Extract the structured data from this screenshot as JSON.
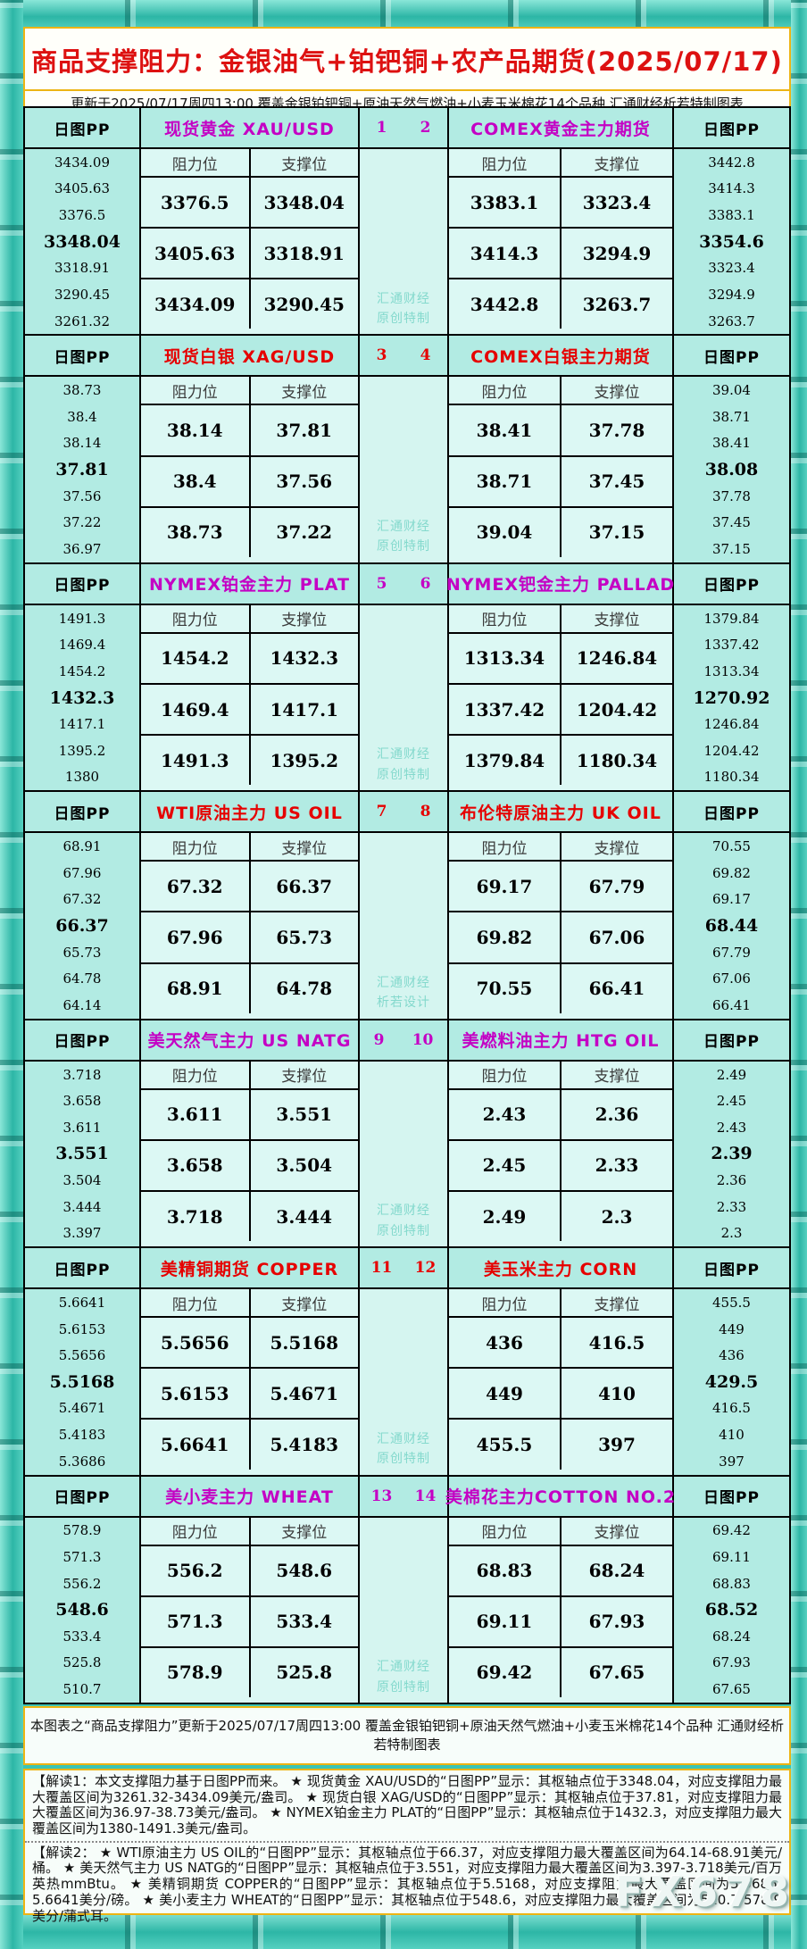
{
  "title": "商品支撑阻力：金银油气+铂钯铜+农产品期货(2025/07/17)",
  "subtitle": "更新于2025/07/17周四13:00  覆盖金银铂钯铜+原油天然气燃油+小麦玉米棉花14个品种  汇通财经析若特制图表",
  "labels": {
    "pp": "日图PP",
    "resistance": "阻力位",
    "support": "支撑位",
    "watermark_line1": "汇通财经"
  },
  "colors": {
    "magenta_accent": "#c400c4",
    "red_accent": "#e60000",
    "title_red": "#dd1111",
    "gold_border": "#edb413",
    "watermark_teal": "#84d9cd"
  },
  "chart_data": {
    "type": "table",
    "title": "商品支撑阻力：金银油气+铂钯铜+农产品期货(2025/07/17)",
    "columns": [
      "阻力位",
      "支撑位"
    ],
    "pivot_note": "日图PP，第4行为枢轴点(加粗)",
    "blocks": "see blocks[] for all 14 instruments"
  },
  "blocks": [
    {
      "accent": "#c400c4",
      "num_left": "1",
      "num_right": "2",
      "watermark_line2": "原创特制",
      "left": {
        "title": "现货黄金 XAU/USD",
        "pp_values": [
          "3434.09",
          "3405.63",
          "3376.5",
          "3348.04",
          "3318.91",
          "3290.45",
          "3261.32"
        ],
        "rows": [
          [
            "3376.5",
            "3348.04"
          ],
          [
            "3405.63",
            "3318.91"
          ],
          [
            "3434.09",
            "3290.45"
          ]
        ]
      },
      "right": {
        "title": "COMEX黄金主力期货",
        "pp_values": [
          "3442.8",
          "3414.3",
          "3383.1",
          "3354.6",
          "3323.4",
          "3294.9",
          "3263.7"
        ],
        "rows": [
          [
            "3383.1",
            "3323.4"
          ],
          [
            "3414.3",
            "3294.9"
          ],
          [
            "3442.8",
            "3263.7"
          ]
        ]
      }
    },
    {
      "accent": "#e60000",
      "num_left": "3",
      "num_right": "4",
      "watermark_line2": "原创特制",
      "left": {
        "title": "现货白银 XAG/USD",
        "pp_values": [
          "38.73",
          "38.4",
          "38.14",
          "37.81",
          "37.56",
          "37.22",
          "36.97"
        ],
        "rows": [
          [
            "38.14",
            "37.81"
          ],
          [
            "38.4",
            "37.56"
          ],
          [
            "38.73",
            "37.22"
          ]
        ]
      },
      "right": {
        "title": "COMEX白银主力期货",
        "pp_values": [
          "39.04",
          "38.71",
          "38.41",
          "38.08",
          "37.78",
          "37.45",
          "37.15"
        ],
        "rows": [
          [
            "38.41",
            "37.78"
          ],
          [
            "38.71",
            "37.45"
          ],
          [
            "39.04",
            "37.15"
          ]
        ]
      }
    },
    {
      "accent": "#c400c4",
      "num_left": "5",
      "num_right": "6",
      "watermark_line2": "原创特制",
      "left": {
        "title": "NYMEX铂金主力 PLAT",
        "pp_values": [
          "1491.3",
          "1469.4",
          "1454.2",
          "1432.3",
          "1417.1",
          "1395.2",
          "1380"
        ],
        "rows": [
          [
            "1454.2",
            "1432.3"
          ],
          [
            "1469.4",
            "1417.1"
          ],
          [
            "1491.3",
            "1395.2"
          ]
        ]
      },
      "right": {
        "title": "NYMEX钯金主力 PALLAD",
        "pp_values": [
          "1379.84",
          "1337.42",
          "1313.34",
          "1270.92",
          "1246.84",
          "1204.42",
          "1180.34"
        ],
        "rows": [
          [
            "1313.34",
            "1246.84"
          ],
          [
            "1337.42",
            "1204.42"
          ],
          [
            "1379.84",
            "1180.34"
          ]
        ]
      }
    },
    {
      "accent": "#e60000",
      "num_left": "7",
      "num_right": "8",
      "watermark_line2": "析若设计",
      "left": {
        "title": "WTI原油主力 US OIL",
        "pp_values": [
          "68.91",
          "67.96",
          "67.32",
          "66.37",
          "65.73",
          "64.78",
          "64.14"
        ],
        "rows": [
          [
            "67.32",
            "66.37"
          ],
          [
            "67.96",
            "65.73"
          ],
          [
            "68.91",
            "64.78"
          ]
        ]
      },
      "right": {
        "title": "布伦特原油主力 UK OIL",
        "pp_values": [
          "70.55",
          "69.82",
          "69.17",
          "68.44",
          "67.79",
          "67.06",
          "66.41"
        ],
        "rows": [
          [
            "69.17",
            "67.79"
          ],
          [
            "69.82",
            "67.06"
          ],
          [
            "70.55",
            "66.41"
          ]
        ]
      }
    },
    {
      "accent": "#c400c4",
      "num_left": "9",
      "num_right": "10",
      "watermark_line2": "原创特制",
      "left": {
        "title": "美天然气主力 US NATG",
        "pp_values": [
          "3.718",
          "3.658",
          "3.611",
          "3.551",
          "3.504",
          "3.444",
          "3.397"
        ],
        "rows": [
          [
            "3.611",
            "3.551"
          ],
          [
            "3.658",
            "3.504"
          ],
          [
            "3.718",
            "3.444"
          ]
        ]
      },
      "right": {
        "title": "美燃料油主力 HTG OIL",
        "pp_values": [
          "2.49",
          "2.45",
          "2.43",
          "2.39",
          "2.36",
          "2.33",
          "2.3"
        ],
        "rows": [
          [
            "2.43",
            "2.36"
          ],
          [
            "2.45",
            "2.33"
          ],
          [
            "2.49",
            "2.3"
          ]
        ]
      }
    },
    {
      "accent": "#e60000",
      "num_left": "11",
      "num_right": "12",
      "watermark_line2": "原创特制",
      "left": {
        "title": "美精铜期货 COPPER",
        "pp_values": [
          "5.6641",
          "5.6153",
          "5.5656",
          "5.5168",
          "5.4671",
          "5.4183",
          "5.3686"
        ],
        "rows": [
          [
            "5.5656",
            "5.5168"
          ],
          [
            "5.6153",
            "5.4671"
          ],
          [
            "5.6641",
            "5.4183"
          ]
        ]
      },
      "right": {
        "title": "美玉米主力 CORN",
        "pp_values": [
          "455.5",
          "449",
          "436",
          "429.5",
          "416.5",
          "410",
          "397"
        ],
        "rows": [
          [
            "436",
            "416.5"
          ],
          [
            "449",
            "410"
          ],
          [
            "455.5",
            "397"
          ]
        ]
      }
    },
    {
      "accent": "#c400c4",
      "num_left": "13",
      "num_right": "14",
      "watermark_line2": "原创特制",
      "left": {
        "title": "美小麦主力 WHEAT",
        "pp_values": [
          "578.9",
          "571.3",
          "556.2",
          "548.6",
          "533.4",
          "525.8",
          "510.7"
        ],
        "rows": [
          [
            "556.2",
            "548.6"
          ],
          [
            "571.3",
            "533.4"
          ],
          [
            "578.9",
            "525.8"
          ]
        ]
      },
      "right": {
        "title": "美棉花主力COTTON NO.2",
        "pp_values": [
          "69.42",
          "69.11",
          "68.83",
          "68.52",
          "68.24",
          "67.93",
          "67.65"
        ],
        "rows": [
          [
            "68.83",
            "68.24"
          ],
          [
            "69.11",
            "67.93"
          ],
          [
            "69.42",
            "67.65"
          ]
        ]
      }
    }
  ],
  "footer": {
    "summary": "本图表之“商品支撑阻力”更新于2025/07/17周四13:00  覆盖金银铂钯铜+原油天然气燃油+小麦玉米棉花14个品种  汇通财经析若特制图表",
    "jiedu1": "【解读1：本文支撑阻力基于日图PP而来。 ★ 现货黄金 XAU/USD的“日图PP”显示：其枢轴点位于3348.04，对应支撑阻力最大覆盖区间为3261.32-3434.09美元/盎司。 ★ 现货白银 XAG/USD的“日图PP”显示：其枢轴点位于37.81，对应支撑阻力最大覆盖区间为36.97-38.73美元/盎司。 ★ NYMEX铂金主力 PLAT的“日图PP”显示：其枢轴点位于1432.3，对应支撑阻力最大覆盖区间为1380-1491.3美元/盎司。",
    "jiedu2": "【解读2： ★ WTI原油主力 US OIL的“日图PP”显示：其枢轴点位于66.37，对应支撑阻力最大覆盖区间为64.14-68.91美元/桶。 ★ 美天然气主力 US NATG的“日图PP”显示：其枢轴点位于3.551，对应支撑阻力最大覆盖区间为3.397-3.718美元/百万英热mmBtu。 ★ 美精铜期货 COPPER的“日图PP”显示：其枢轴点位于5.5168，对应支撑阻力最大覆盖区间为5.3686-5.6641美分/磅。 ★ 美小麦主力 WHEAT的“日图PP”显示：其枢轴点位于548.6，对应支撑阻力最大覆盖区间为510.7-578.9美分/蒲式耳。"
  },
  "fx_watermark": "FX678"
}
